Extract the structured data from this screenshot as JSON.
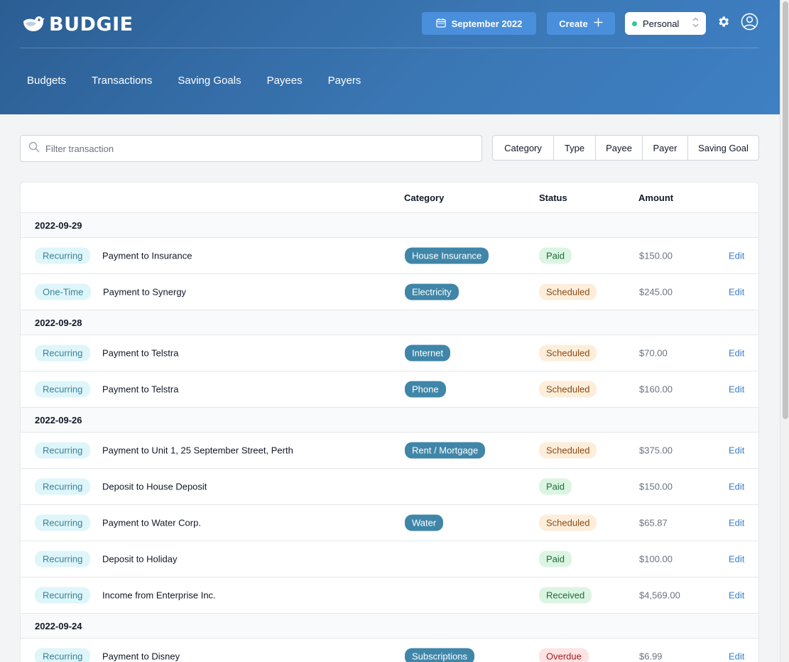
{
  "app": {
    "name": "BUDGIE"
  },
  "header": {
    "date_label": "September 2022",
    "create_label": "Create",
    "account_select": "Personal"
  },
  "nav": [
    "Budgets",
    "Transactions",
    "Saving Goals",
    "Payees",
    "Payers"
  ],
  "search": {
    "placeholder": "Filter transaction",
    "value": ""
  },
  "filters": [
    "Category",
    "Type",
    "Payee",
    "Payer",
    "Saving Goal"
  ],
  "table": {
    "columns": {
      "category": "Category",
      "status": "Status",
      "amount": "Amount"
    },
    "edit_label": "Edit",
    "groups": [
      {
        "date": "2022-09-29",
        "rows": [
          {
            "type": "Recurring",
            "description": "Payment to Insurance",
            "category": "House Insurance",
            "status": "Paid",
            "amount": "$150.00"
          },
          {
            "type": "One-Time",
            "description": "Payment to Synergy",
            "category": "Electricity",
            "status": "Scheduled",
            "amount": "$245.00"
          }
        ]
      },
      {
        "date": "2022-09-28",
        "rows": [
          {
            "type": "Recurring",
            "description": "Payment to Telstra",
            "category": "Internet",
            "status": "Scheduled",
            "amount": "$70.00"
          },
          {
            "type": "Recurring",
            "description": "Payment to Telstra",
            "category": "Phone",
            "status": "Scheduled",
            "amount": "$160.00"
          }
        ]
      },
      {
        "date": "2022-09-26",
        "rows": [
          {
            "type": "Recurring",
            "description": "Payment to Unit 1, 25 September Street, Perth",
            "category": "Rent / Mortgage",
            "status": "Scheduled",
            "amount": "$375.00"
          },
          {
            "type": "Recurring",
            "description": "Deposit to House Deposit",
            "category": "",
            "status": "Paid",
            "amount": "$150.00"
          },
          {
            "type": "Recurring",
            "description": "Payment to Water Corp.",
            "category": "Water",
            "status": "Scheduled",
            "amount": "$65.87"
          },
          {
            "type": "Recurring",
            "description": "Deposit to Holiday",
            "category": "",
            "status": "Paid",
            "amount": "$100.00"
          },
          {
            "type": "Recurring",
            "description": "Income from Enterprise Inc.",
            "category": "",
            "status": "Received",
            "amount": "$4,569.00"
          }
        ]
      },
      {
        "date": "2022-09-24",
        "rows": [
          {
            "type": "Recurring",
            "description": "Payment to Disney",
            "category": "Subscriptions",
            "status": "Overdue",
            "amount": "$6.99"
          }
        ]
      }
    ]
  },
  "colors": {
    "header_start": "#2b5e93",
    "header_end": "#3e80c4",
    "primary_button": "#4a8fdb",
    "category_badge": "#3f86a8",
    "edit_link": "#3a7ec4"
  },
  "icons": {
    "logo": "bird-icon",
    "date": "calendar-icon",
    "create": "plus-icon",
    "select": "selector-icon",
    "settings": "gear-icon",
    "account": "user-circle-icon",
    "search": "search-icon"
  }
}
